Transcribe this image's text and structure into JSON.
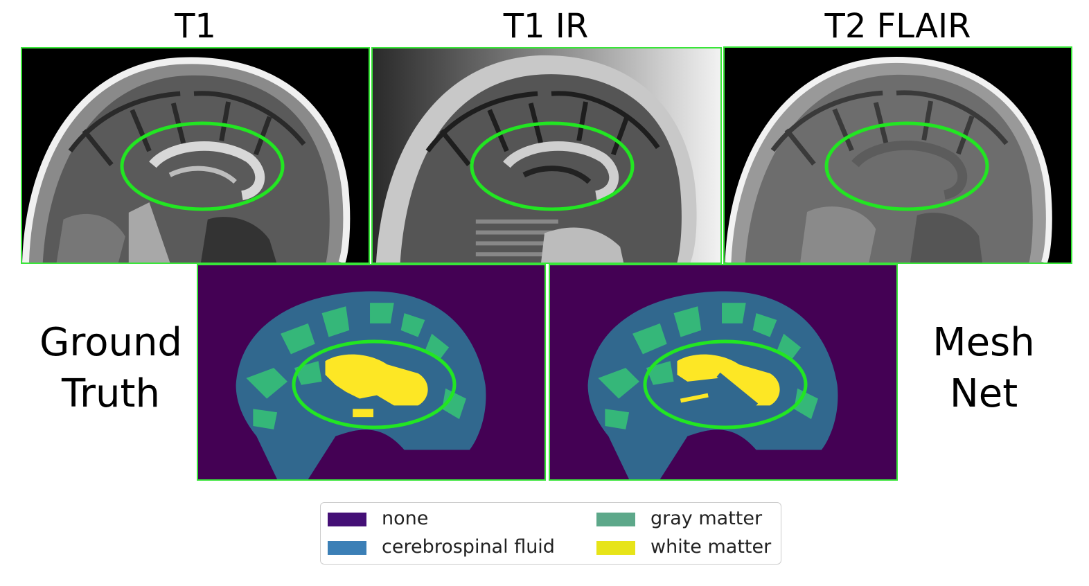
{
  "titles": {
    "t1": "T1",
    "t1ir": "T1 IR",
    "t2flair": "T2 FLAIR"
  },
  "row_labels": {
    "ground_truth": [
      "Ground",
      "Truth"
    ],
    "meshnet": [
      "Mesh",
      "Net"
    ]
  },
  "legend": [
    {
      "label": "none",
      "color": "#440f76"
    },
    {
      "label": "cerebrospinal fluid",
      "color": "#3b7fb6"
    },
    {
      "label": "gray matter",
      "color": "#5da88a"
    },
    {
      "label": "white matter",
      "color": "#e7e419"
    }
  ],
  "colors": {
    "highlight": "#22e622",
    "segmentation_background": "#440154",
    "csf": "#31688e",
    "gray_matter": "#35b779",
    "white_matter": "#fde725"
  }
}
